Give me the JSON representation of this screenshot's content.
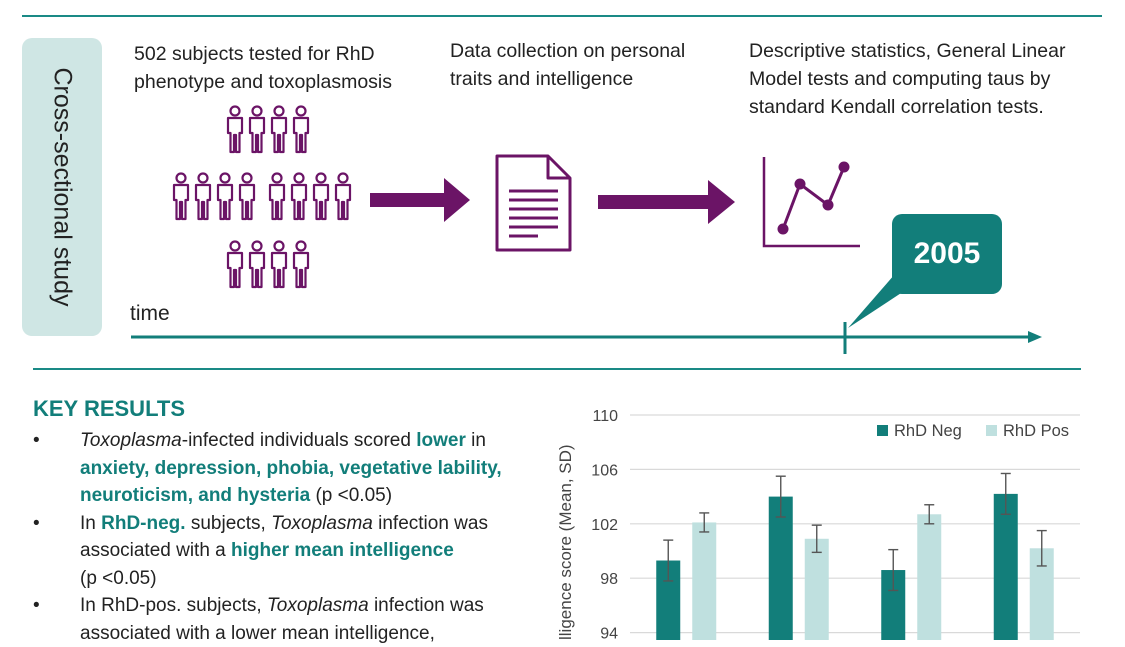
{
  "header": {
    "study_type": "Cross-sectional study",
    "steps": [
      {
        "lines": [
          "502 subjects tested for RhD",
          "phenotype and toxoplasmosis"
        ]
      },
      {
        "lines": [
          "Data collection on personal",
          "traits and intelligence"
        ]
      },
      {
        "lines": [
          "Descriptive statistics, General Linear",
          "Model tests and computing taus by",
          "standard Kendall correlation tests."
        ]
      }
    ],
    "time_label": "time",
    "year": "2005"
  },
  "icons": {
    "people": "people-group-icon",
    "document": "document-icon",
    "chart": "line-chart-icon",
    "arrow": "arrow-right-icon"
  },
  "colors": {
    "teal": "#127e7a",
    "teal_light": "#bfe0df",
    "purple": "#6b1466",
    "tag_bg": "#cfe6e4"
  },
  "key_results": {
    "title": "KEY RESULTS",
    "bullet_symbol": "•",
    "b1": {
      "t1": "Toxoplasma",
      "t2": "-infected individuals scored ",
      "t3": "lower",
      "t4": " in",
      "t5": "anxiety, depression, phobia, vegetative lability,",
      "t6": "neuroticism, and hysteria",
      "t7": " (p <0.05)"
    },
    "b2": {
      "t1": "In ",
      "t2": "RhD-neg.",
      "t3": " subjects, ",
      "t4": "Toxoplasma",
      "t5": " infection was",
      "t6": "associated with a ",
      "t7": "higher mean intelligence",
      "t8": "(p <0.05)"
    },
    "b3": {
      "t1": "In RhD-pos. subjects, ",
      "t2": "Toxoplasma",
      "t3": " infection was",
      "t4": "associated with a lower mean intelligence,"
    }
  },
  "chart_data": {
    "type": "bar",
    "ylabel": "Intelligence score (Mean, SD)",
    "ylabel_visible": "lligence score (Mean, SD)",
    "ylim": [
      94,
      110
    ],
    "yticks": [
      94,
      98,
      102,
      106,
      110
    ],
    "grid": true,
    "legend_position": "top-right",
    "categories": [
      "",
      "",
      "",
      ""
    ],
    "series": [
      {
        "name": "RhD Neg",
        "color": "#127e7a",
        "values": [
          99.3,
          104.0,
          98.6,
          104.2
        ],
        "sd": [
          1.5,
          1.5,
          1.5,
          1.5
        ]
      },
      {
        "name": "RhD Pos",
        "color": "#bfe0df",
        "values": [
          102.1,
          100.9,
          102.7,
          100.2
        ],
        "sd": [
          0.7,
          1.0,
          0.7,
          1.3
        ]
      }
    ]
  }
}
